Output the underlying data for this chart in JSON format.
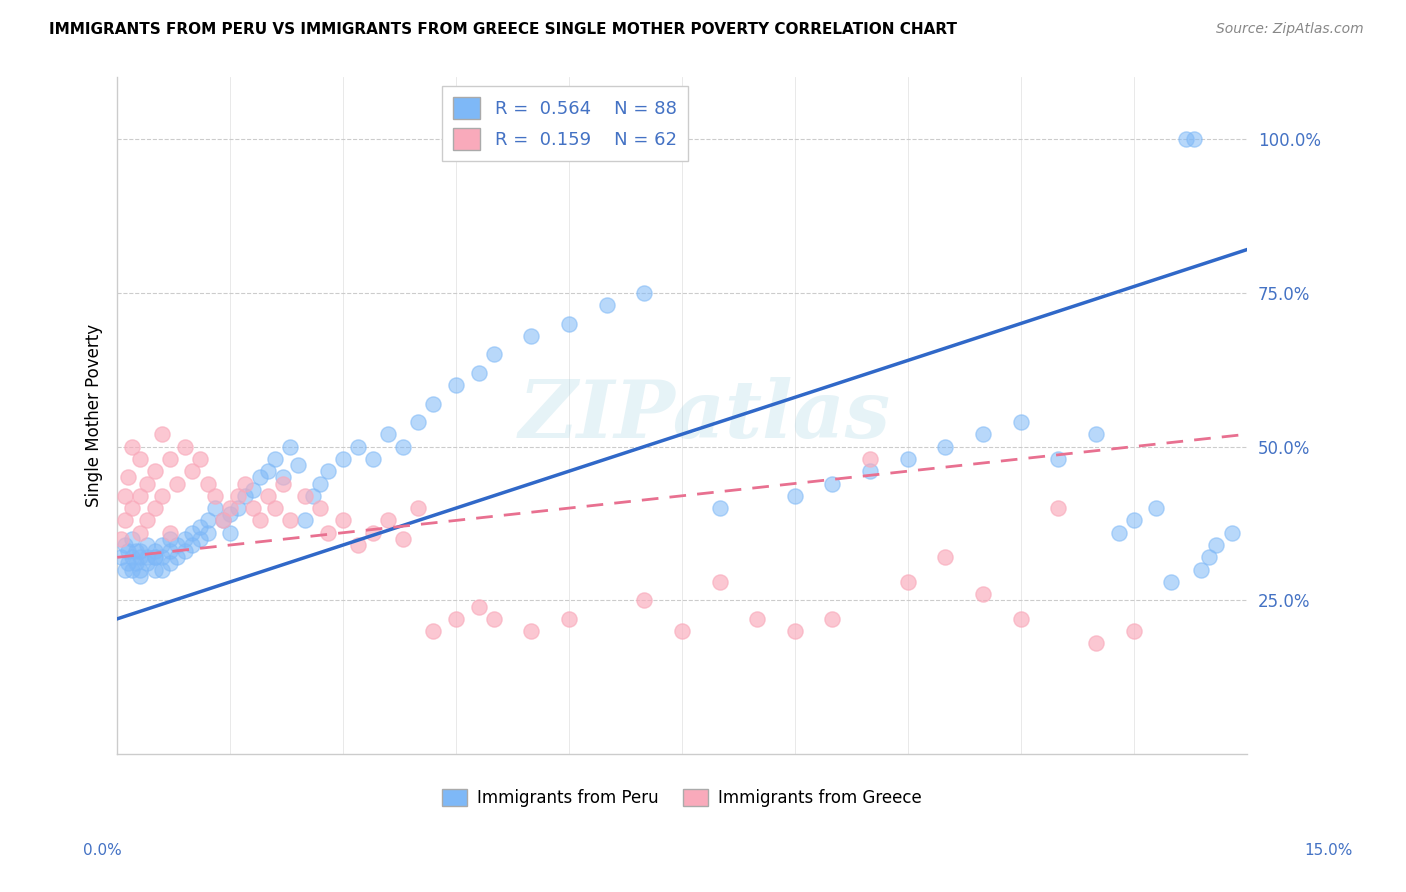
{
  "title": "IMMIGRANTS FROM PERU VS IMMIGRANTS FROM GREECE SINGLE MOTHER POVERTY CORRELATION CHART",
  "source": "Source: ZipAtlas.com",
  "ylabel": "Single Mother Poverty",
  "ytick_labels": [
    "25.0%",
    "50.0%",
    "75.0%",
    "100.0%"
  ],
  "ytick_values": [
    0.25,
    0.5,
    0.75,
    1.0
  ],
  "xlim": [
    0.0,
    0.15
  ],
  "ylim": [
    0.0,
    1.1
  ],
  "legend_peru_R": "0.564",
  "legend_peru_N": "88",
  "legend_greece_R": "0.159",
  "legend_greece_N": "62",
  "blue_color": "#7EB8F7",
  "pink_color": "#F9AABB",
  "blue_line_color": "#3068C8",
  "pink_line_color": "#E87090",
  "text_color": "#4472C4",
  "watermark": "ZIPatlas",
  "peru_line_x0": 0.0,
  "peru_line_y0": 0.22,
  "peru_line_x1": 0.15,
  "peru_line_y1": 0.82,
  "greece_line_x0": 0.0,
  "greece_line_y0": 0.32,
  "greece_line_x1": 0.15,
  "greece_line_y1": 0.52,
  "peru_x": [
    0.0005,
    0.001,
    0.001,
    0.0015,
    0.0015,
    0.002,
    0.002,
    0.002,
    0.0025,
    0.0025,
    0.003,
    0.003,
    0.003,
    0.003,
    0.004,
    0.004,
    0.004,
    0.005,
    0.005,
    0.005,
    0.005,
    0.006,
    0.006,
    0.006,
    0.007,
    0.007,
    0.007,
    0.008,
    0.008,
    0.009,
    0.009,
    0.01,
    0.01,
    0.011,
    0.011,
    0.012,
    0.012,
    0.013,
    0.014,
    0.015,
    0.015,
    0.016,
    0.017,
    0.018,
    0.019,
    0.02,
    0.021,
    0.022,
    0.023,
    0.024,
    0.025,
    0.026,
    0.027,
    0.028,
    0.03,
    0.032,
    0.034,
    0.036,
    0.038,
    0.04,
    0.042,
    0.045,
    0.048,
    0.05,
    0.055,
    0.06,
    0.065,
    0.07,
    0.08,
    0.09,
    0.095,
    0.1,
    0.105,
    0.11,
    0.115,
    0.12,
    0.125,
    0.13,
    0.133,
    0.135,
    0.138,
    0.14,
    0.142,
    0.143,
    0.144,
    0.145,
    0.146,
    0.148
  ],
  "peru_y": [
    0.32,
    0.3,
    0.34,
    0.31,
    0.33,
    0.32,
    0.3,
    0.35,
    0.31,
    0.33,
    0.32,
    0.3,
    0.33,
    0.29,
    0.32,
    0.31,
    0.34,
    0.32,
    0.3,
    0.33,
    0.32,
    0.34,
    0.3,
    0.32,
    0.33,
    0.31,
    0.35,
    0.34,
    0.32,
    0.35,
    0.33,
    0.36,
    0.34,
    0.37,
    0.35,
    0.38,
    0.36,
    0.4,
    0.38,
    0.39,
    0.36,
    0.4,
    0.42,
    0.43,
    0.45,
    0.46,
    0.48,
    0.45,
    0.5,
    0.47,
    0.38,
    0.42,
    0.44,
    0.46,
    0.48,
    0.5,
    0.48,
    0.52,
    0.5,
    0.54,
    0.57,
    0.6,
    0.62,
    0.65,
    0.68,
    0.7,
    0.73,
    0.75,
    0.4,
    0.42,
    0.44,
    0.46,
    0.48,
    0.5,
    0.52,
    0.54,
    0.48,
    0.52,
    0.36,
    0.38,
    0.4,
    0.28,
    1.0,
    1.0,
    0.3,
    0.32,
    0.34,
    0.36
  ],
  "greece_x": [
    0.0005,
    0.001,
    0.001,
    0.0015,
    0.002,
    0.002,
    0.003,
    0.003,
    0.003,
    0.004,
    0.004,
    0.005,
    0.005,
    0.006,
    0.006,
    0.007,
    0.007,
    0.008,
    0.009,
    0.01,
    0.011,
    0.012,
    0.013,
    0.014,
    0.015,
    0.016,
    0.017,
    0.018,
    0.019,
    0.02,
    0.021,
    0.022,
    0.023,
    0.025,
    0.027,
    0.028,
    0.03,
    0.032,
    0.034,
    0.036,
    0.038,
    0.04,
    0.042,
    0.045,
    0.048,
    0.05,
    0.055,
    0.06,
    0.07,
    0.075,
    0.08,
    0.085,
    0.09,
    0.095,
    0.1,
    0.105,
    0.11,
    0.115,
    0.12,
    0.125,
    0.13,
    0.135
  ],
  "greece_y": [
    0.35,
    0.42,
    0.38,
    0.45,
    0.4,
    0.5,
    0.36,
    0.48,
    0.42,
    0.44,
    0.38,
    0.46,
    0.4,
    0.52,
    0.42,
    0.48,
    0.36,
    0.44,
    0.5,
    0.46,
    0.48,
    0.44,
    0.42,
    0.38,
    0.4,
    0.42,
    0.44,
    0.4,
    0.38,
    0.42,
    0.4,
    0.44,
    0.38,
    0.42,
    0.4,
    0.36,
    0.38,
    0.34,
    0.36,
    0.38,
    0.35,
    0.4,
    0.2,
    0.22,
    0.24,
    0.22,
    0.2,
    0.22,
    0.25,
    0.2,
    0.28,
    0.22,
    0.2,
    0.22,
    0.48,
    0.28,
    0.32,
    0.26,
    0.22,
    0.4,
    0.18,
    0.2
  ]
}
